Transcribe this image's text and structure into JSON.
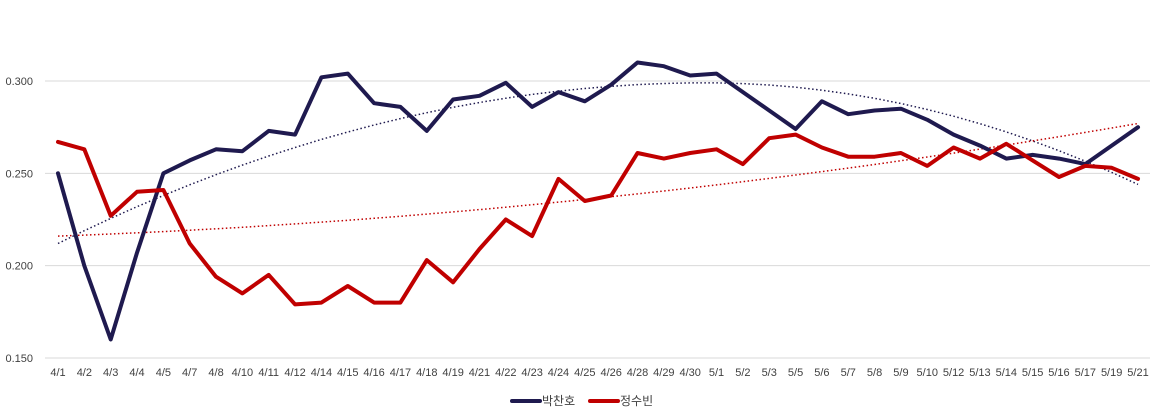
{
  "chart_data": {
    "type": "line",
    "title": "",
    "xlabel": "",
    "ylabel": "",
    "ylim": [
      0.15,
      0.33
    ],
    "yticks": [
      "0.150",
      "0.200",
      "0.250",
      "0.300"
    ],
    "ytick_values": [
      0.15,
      0.2,
      0.25,
      0.3
    ],
    "grid": true,
    "legend_position": "bottom",
    "categories": [
      "4/1",
      "4/2",
      "4/3",
      "4/4",
      "4/5",
      "4/7",
      "4/8",
      "4/10",
      "4/11",
      "4/12",
      "4/14",
      "4/15",
      "4/16",
      "4/17",
      "4/18",
      "4/19",
      "4/21",
      "4/22",
      "4/23",
      "4/24",
      "4/25",
      "4/26",
      "4/28",
      "4/29",
      "4/30",
      "5/1",
      "5/2",
      "5/3",
      "5/5",
      "5/6",
      "5/7",
      "5/8",
      "5/9",
      "5/10",
      "5/12",
      "5/13",
      "5/14",
      "5/15",
      "5/16",
      "5/17",
      "5/19",
      "5/21"
    ],
    "series": [
      {
        "name": "박찬호",
        "color": "#1f1a4f",
        "values": [
          0.25,
          0.2,
          0.16,
          0.207,
          0.25,
          0.257,
          0.263,
          0.262,
          0.273,
          0.271,
          0.302,
          0.304,
          0.288,
          0.286,
          0.273,
          0.29,
          0.292,
          0.299,
          0.286,
          0.294,
          0.289,
          0.298,
          0.31,
          0.308,
          0.303,
          0.304,
          0.294,
          0.284,
          0.274,
          0.289,
          0.282,
          0.284,
          0.285,
          0.279,
          0.271,
          0.265,
          0.258,
          0.26,
          0.258,
          0.255,
          0.265,
          0.275
        ],
        "trendline": {
          "type": "polynomial",
          "color": "#1f1a4f",
          "start": 0.212,
          "peak": 0.299,
          "end": 0.244
        }
      },
      {
        "name": "정수빈",
        "color": "#c00000",
        "values": [
          0.267,
          0.263,
          0.227,
          0.24,
          0.241,
          0.212,
          0.194,
          0.185,
          0.195,
          0.179,
          0.18,
          0.189,
          0.18,
          0.18,
          0.203,
          0.191,
          0.209,
          0.225,
          0.216,
          0.247,
          0.235,
          0.238,
          0.261,
          0.258,
          0.261,
          0.263,
          0.255,
          0.269,
          0.271,
          0.264,
          0.259,
          0.259,
          0.261,
          0.254,
          0.264,
          0.258,
          0.266,
          0.257,
          0.248,
          0.254,
          0.253,
          0.247
        ],
        "trendline": {
          "type": "polynomial",
          "color": "#c00000",
          "start": 0.216,
          "end": 0.277
        }
      }
    ]
  }
}
